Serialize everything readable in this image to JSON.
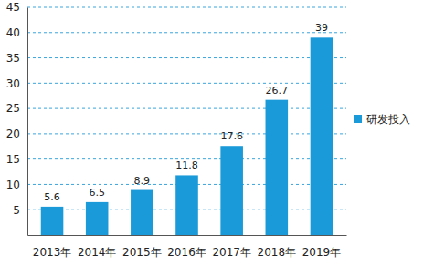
{
  "chart_data": {
    "type": "bar",
    "categories": [
      "2013年",
      "2014年",
      "2015年",
      "2016年",
      "2017年",
      "2018年",
      "2019年"
    ],
    "series": [
      {
        "name": "研发投入",
        "color": "#1a9ad9",
        "values": [
          5.6,
          6.5,
          8.9,
          11.8,
          17.6,
          26.7,
          39
        ]
      }
    ],
    "ylim": [
      0,
      45
    ],
    "yticks": [
      5,
      10,
      15,
      20,
      25,
      30,
      35,
      40,
      45
    ],
    "grid": true,
    "data_labels": true,
    "legend": "right"
  }
}
